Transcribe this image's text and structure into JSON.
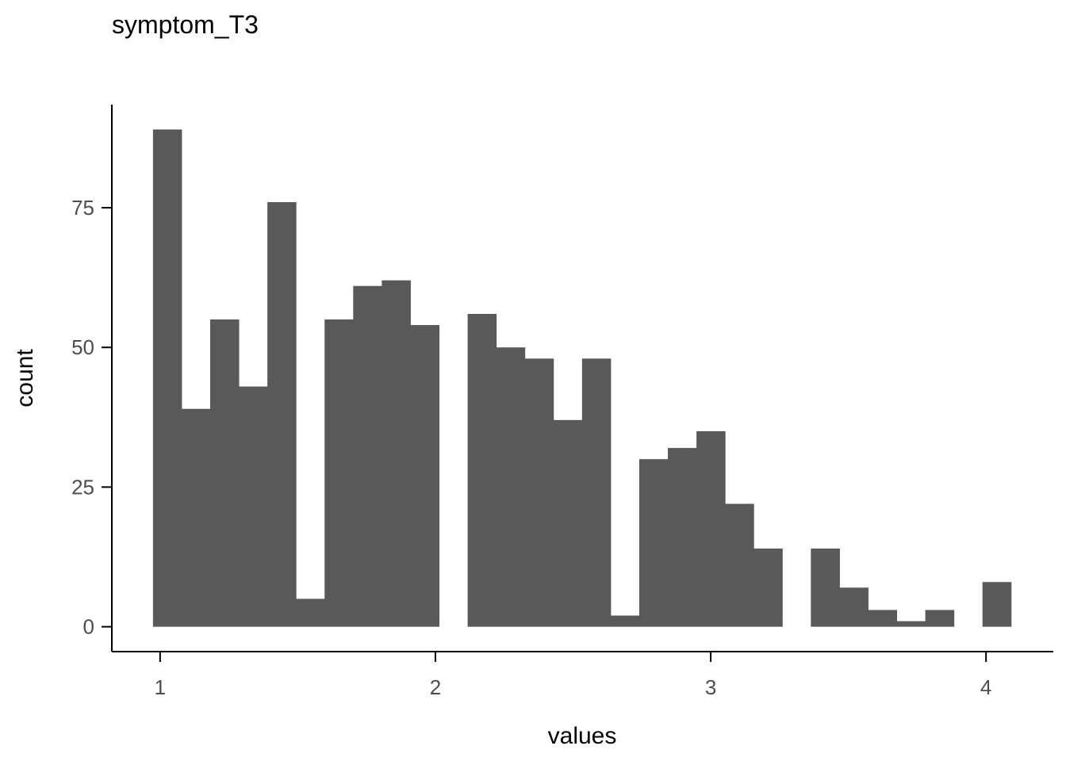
{
  "chart_data": {
    "type": "bar",
    "title": "symptom_T3",
    "xlabel": "values",
    "ylabel": "count",
    "xlim": [
      0.8247,
      4.2444
    ],
    "ylim": [
      -4.45,
      93.45
    ],
    "x_ticks": [
      1,
      2,
      3,
      4
    ],
    "x_tick_labels": [
      "1",
      "2",
      "3",
      "4"
    ],
    "y_ticks": [
      0,
      25,
      50,
      75
    ],
    "y_tick_labels": [
      "0",
      "25",
      "50",
      "75"
    ],
    "grid": false,
    "legend": "none",
    "bin_width": 0.1039,
    "bin_start": 0.9741,
    "values": [
      89,
      39,
      55,
      43,
      76,
      5,
      55,
      61,
      62,
      54,
      0,
      56,
      50,
      48,
      37,
      48,
      2,
      30,
      32,
      35,
      22,
      14,
      0,
      14,
      7,
      3,
      1,
      3,
      0,
      8
    ]
  },
  "style": {
    "bar_color": "#595959",
    "axis_color": "#000000",
    "tick_label_color": "#4d4d4d",
    "background": "#ffffff"
  }
}
